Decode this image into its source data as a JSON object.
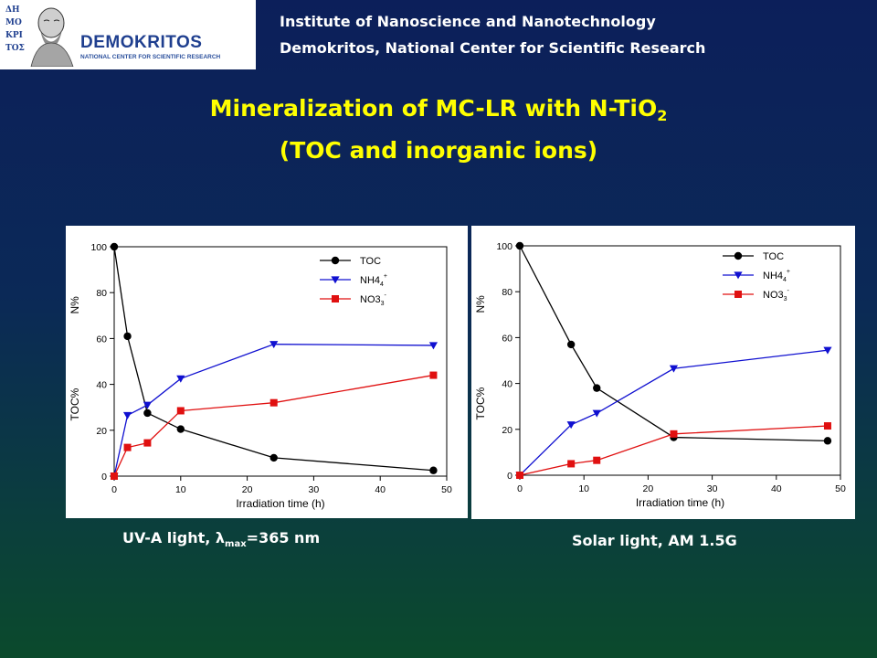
{
  "header": {
    "logo_name": "DEMOKRITOS",
    "logo_sub": "NATIONAL CENTER FOR SCIENTIFIC RESEARCH",
    "seal_text": "ΔΗΜΟΚΡΙΤΟΣ",
    "institute_line1": "Institute of Nanoscience and Nanotechnology",
    "institute_line2": "Demokritos, National Center for Scientific Research"
  },
  "title": {
    "line1_main": "Mineralization of MC-LR with N-TiO",
    "line1_sub": "2",
    "line2": "(TOC and inorganic ions)"
  },
  "colors": {
    "toc": "#000000",
    "nh4": "#1010d0",
    "no3": "#e01010",
    "title": "#ffff00"
  },
  "chart_data": [
    {
      "type": "line",
      "xlabel": "Irradiation time (h)",
      "ylabel_left": "TOC%",
      "ylabel_right": "N%",
      "xlim": [
        0,
        50
      ],
      "ylim": [
        0,
        100
      ],
      "xticks": [
        0,
        10,
        20,
        30,
        40,
        50
      ],
      "yticks": [
        0,
        20,
        40,
        60,
        80,
        100
      ],
      "legend_position": "top-right",
      "series": [
        {
          "name": "TOC",
          "key": "toc",
          "marker": "circle",
          "x": [
            0,
            2,
            5,
            10,
            24,
            48
          ],
          "y": [
            100,
            61,
            27.5,
            20.5,
            8,
            2.5
          ]
        },
        {
          "name": "NH4",
          "sub": "4",
          "sup": "+",
          "key": "nh4",
          "marker": "triangle-down",
          "x": [
            0,
            2,
            5,
            10,
            24,
            48
          ],
          "y": [
            0,
            26.5,
            31,
            42.5,
            57.5,
            57
          ]
        },
        {
          "name": "NO3",
          "sub": "3",
          "sup": "-",
          "key": "no3",
          "marker": "square",
          "x": [
            0,
            2,
            5,
            10,
            24,
            48
          ],
          "y": [
            0,
            12.5,
            14.5,
            28.5,
            32,
            44
          ]
        }
      ],
      "caption_main": "UV-A light, λ",
      "caption_sub": "max",
      "caption_tail": "=365 nm"
    },
    {
      "type": "line",
      "xlabel": "Irradiation time (h)",
      "ylabel_left": "TOC%",
      "ylabel_right": "N%",
      "xlim": [
        0,
        50
      ],
      "ylim": [
        0,
        100
      ],
      "xticks": [
        0,
        10,
        20,
        30,
        40,
        50
      ],
      "yticks": [
        0,
        20,
        40,
        60,
        80,
        100
      ],
      "legend_position": "top-right",
      "series": [
        {
          "name": "TOC",
          "key": "toc",
          "marker": "circle",
          "x": [
            0,
            8,
            12,
            24,
            48
          ],
          "y": [
            100,
            57,
            38,
            16.5,
            15
          ]
        },
        {
          "name": "NH4",
          "sub": "4",
          "sup": "+",
          "key": "nh4",
          "marker": "triangle-down",
          "x": [
            0,
            8,
            12,
            24,
            48
          ],
          "y": [
            0,
            22,
            27,
            46.5,
            54.5
          ]
        },
        {
          "name": "NO3",
          "sub": "3",
          "sup": "-",
          "key": "no3",
          "marker": "square",
          "x": [
            0,
            8,
            12,
            24,
            48
          ],
          "y": [
            0,
            5,
            6.5,
            18,
            21.5
          ]
        }
      ],
      "caption_main": "Solar light, AM 1.5G",
      "caption_sub": "",
      "caption_tail": ""
    }
  ]
}
